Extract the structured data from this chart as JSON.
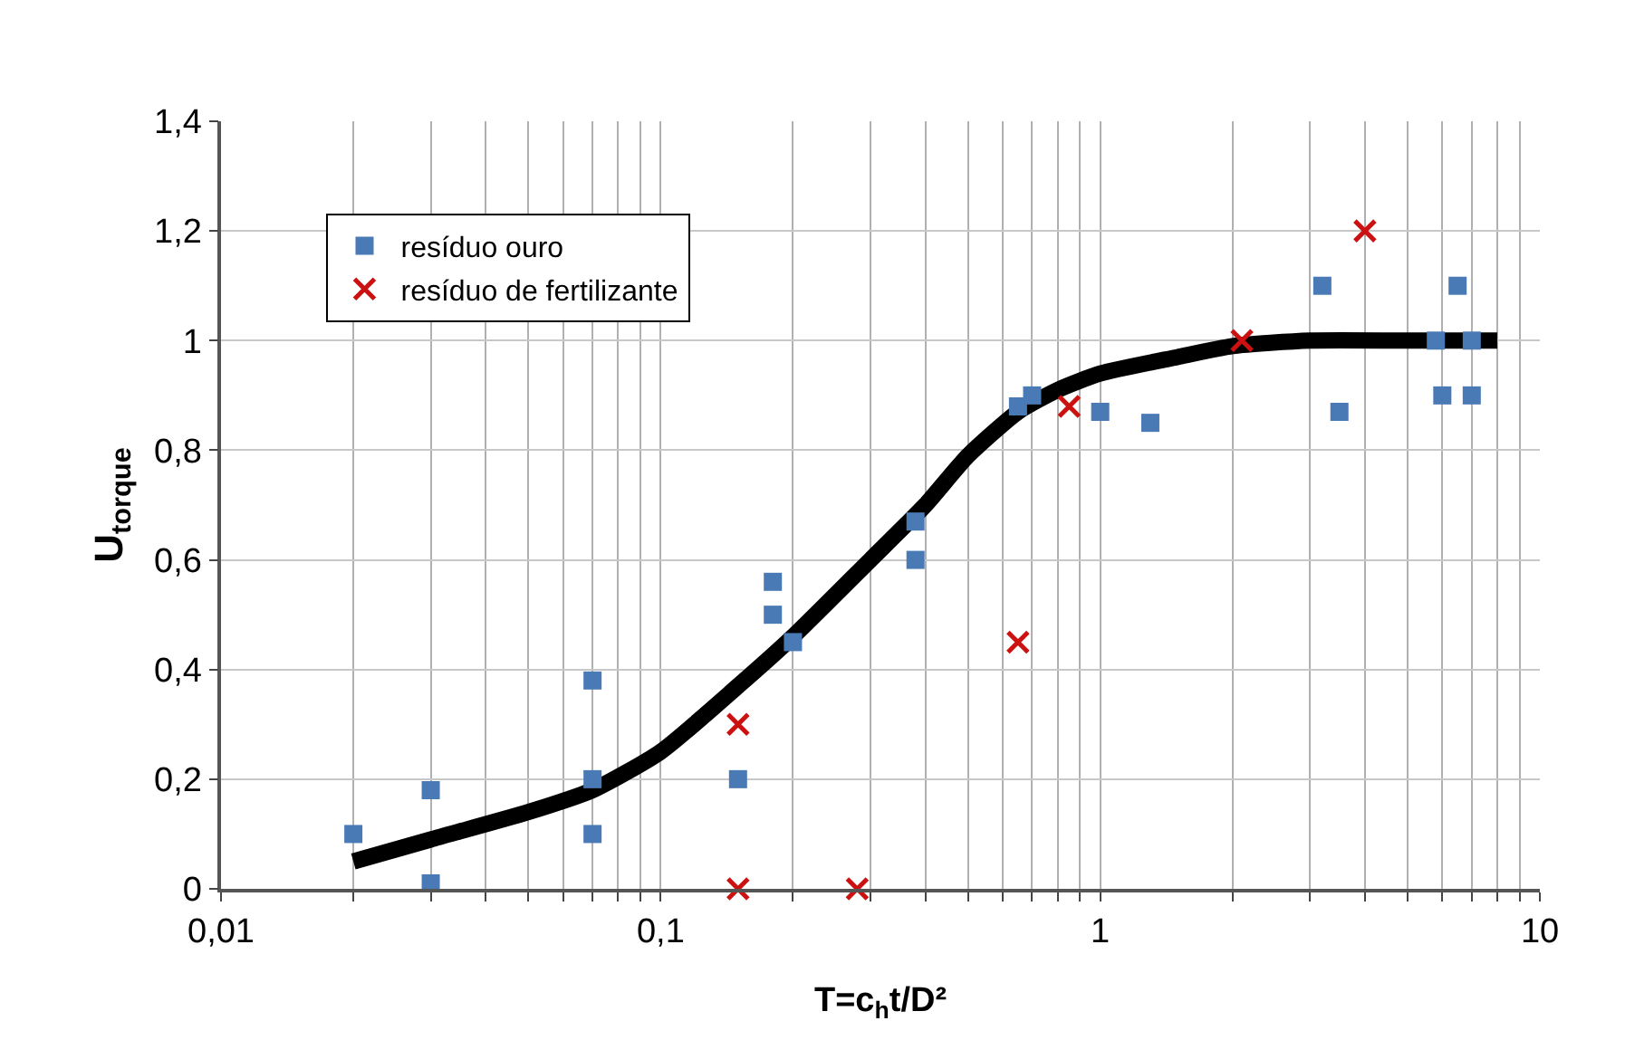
{
  "chart_data": {
    "type": "scatter",
    "xlabel": "T=c$_{h}$t/D²",
    "ylabel": "U$_{torque}$",
    "log": "x",
    "grid": true,
    "legend": "top left",
    "xlim": [
      0.01,
      10
    ],
    "xticks": [
      {
        "value": 0.01,
        "label": "0,01"
      },
      {
        "value": 0.02,
        "label": null
      },
      {
        "value": 0.03,
        "label": null
      },
      {
        "value": 0.04,
        "label": null
      },
      {
        "value": 0.05,
        "label": null
      },
      {
        "value": 0.06,
        "label": null
      },
      {
        "value": 0.07,
        "label": null
      },
      {
        "value": 0.08,
        "label": null
      },
      {
        "value": 0.09,
        "label": null
      },
      {
        "value": 0.1,
        "label": "0,1"
      },
      {
        "value": 0.2,
        "label": null
      },
      {
        "value": 0.3,
        "label": null
      },
      {
        "value": 0.4,
        "label": null
      },
      {
        "value": 0.5,
        "label": null
      },
      {
        "value": 0.6,
        "label": null
      },
      {
        "value": 0.7,
        "label": null
      },
      {
        "value": 0.8,
        "label": null
      },
      {
        "value": 0.9,
        "label": null
      },
      {
        "value": 1,
        "label": "1"
      },
      {
        "value": 2,
        "label": null
      },
      {
        "value": 3,
        "label": null
      },
      {
        "value": 4,
        "label": null
      },
      {
        "value": 5,
        "label": null
      },
      {
        "value": 6,
        "label": null
      },
      {
        "value": 7,
        "label": null
      },
      {
        "value": 8,
        "label": null
      },
      {
        "value": 9,
        "label": null
      },
      {
        "value": 10,
        "label": "10"
      }
    ],
    "ylim": [
      0,
      1.4
    ],
    "yticks": [
      {
        "value": 0,
        "label": "0"
      },
      {
        "value": 0.2,
        "label": "0,2"
      },
      {
        "value": 0.4,
        "label": "0,4"
      },
      {
        "value": 0.6,
        "label": "0,6"
      },
      {
        "value": 0.8,
        "label": "0,8"
      },
      {
        "value": 1,
        "label": "1"
      },
      {
        "value": 1.2,
        "label": "1,2"
      },
      {
        "value": 1.4,
        "label": "1,4"
      }
    ],
    "series": [
      {
        "type": "line",
        "color": "#000000",
        "marker": "none",
        "x": [
          0.02,
          0.03,
          0.05,
          0.07,
          0.1,
          0.15,
          0.2,
          0.3,
          0.4,
          0.5,
          0.65,
          0.8,
          1,
          1.5,
          2,
          3,
          5,
          8
        ],
        "values": [
          0.05,
          0.09,
          0.14,
          0.18,
          0.25,
          0.37,
          0.46,
          0.6,
          0.7,
          0.79,
          0.87,
          0.91,
          0.94,
          0.97,
          0.99,
          1.0,
          1.0,
          1.0
        ]
      },
      {
        "name": "resíduo ouro",
        "color": "#4a7ab5",
        "marker": "square",
        "x": [
          0.02,
          0.03,
          0.03,
          0.07,
          0.07,
          0.07,
          0.15,
          0.18,
          0.18,
          0.2,
          0.38,
          0.38,
          0.65,
          0.7,
          1.0,
          1.3,
          3.2,
          3.5,
          5.8,
          6.0,
          6.5,
          7,
          7
        ],
        "values": [
          0.1,
          0.18,
          0.01,
          0.38,
          0.2,
          0.1,
          0.2,
          0.56,
          0.5,
          0.45,
          0.67,
          0.6,
          0.88,
          0.9,
          0.87,
          0.85,
          1.1,
          0.87,
          1.0,
          0.9,
          1.1,
          1.0,
          0.9
        ]
      },
      {
        "name": "resíduo de fertilizante",
        "color": "#cc1111",
        "marker": "cross",
        "x": [
          0.15,
          0.15,
          0.28,
          0.65,
          0.85,
          2.1,
          4
        ],
        "values": [
          0.3,
          0,
          0,
          0.45,
          0.88,
          1.0,
          1.2
        ]
      }
    ]
  }
}
